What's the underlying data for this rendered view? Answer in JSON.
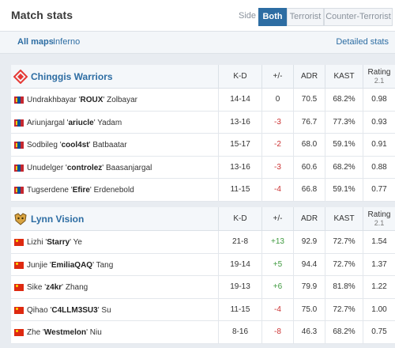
{
  "header": {
    "title": "Match stats",
    "side_label": "Side",
    "side_options": [
      "Both",
      "Terrorist",
      "Counter-Terrorist"
    ],
    "side_selected": "Both"
  },
  "maps": {
    "all_label": "All maps",
    "map_label": "Inferno",
    "detailed_label": "Detailed stats"
  },
  "columns": {
    "kd": "K-D",
    "pm": "+/-",
    "adr": "ADR",
    "kast": "KAST",
    "rating": "Rating",
    "rating_sub": "2.1"
  },
  "teams": [
    {
      "name": "Chinggis Warriors",
      "logo_icon": "chinggis-warriors-logo",
      "players": [
        {
          "first": "Undrakhbayar",
          "nick": "ROUX",
          "last": "Zolbayar",
          "flag": "mn",
          "kd": "14-14",
          "pm": "0",
          "adr": "70.5",
          "kast": "68.2%",
          "rating": "0.98"
        },
        {
          "first": "Ariunjargal",
          "nick": "ariucle",
          "last": "Yadam",
          "flag": "mn",
          "kd": "13-16",
          "pm": "-3",
          "adr": "76.7",
          "kast": "77.3%",
          "rating": "0.93"
        },
        {
          "first": "Sodbileg",
          "nick": "cool4st",
          "last": "Batbaatar",
          "flag": "mn",
          "kd": "15-17",
          "pm": "-2",
          "adr": "68.0",
          "kast": "59.1%",
          "rating": "0.91"
        },
        {
          "first": "Unudelger",
          "nick": "controlez",
          "last": "Baasanjargal",
          "flag": "mn",
          "kd": "13-16",
          "pm": "-3",
          "adr": "60.6",
          "kast": "68.2%",
          "rating": "0.88"
        },
        {
          "first": "Tugserdene",
          "nick": "Efire",
          "last": "Erdenebold",
          "flag": "mn",
          "kd": "11-15",
          "pm": "-4",
          "adr": "66.8",
          "kast": "59.1%",
          "rating": "0.77"
        }
      ]
    },
    {
      "name": "Lynn Vision",
      "logo_icon": "lynn-vision-logo",
      "players": [
        {
          "first": "Lizhi",
          "nick": "Starry",
          "last": "Ye",
          "flag": "cn",
          "kd": "21-8",
          "pm": "+13",
          "adr": "92.9",
          "kast": "72.7%",
          "rating": "1.54"
        },
        {
          "first": "Junjie",
          "nick": "EmiliaQAQ",
          "last": "Tang",
          "flag": "cn",
          "kd": "19-14",
          "pm": "+5",
          "adr": "94.4",
          "kast": "72.7%",
          "rating": "1.37"
        },
        {
          "first": "Sike",
          "nick": "z4kr",
          "last": "Zhang",
          "flag": "cn",
          "kd": "19-13",
          "pm": "+6",
          "adr": "79.9",
          "kast": "81.8%",
          "rating": "1.22"
        },
        {
          "first": "Qihao",
          "nick": "C4LLM3SU3",
          "last": "Su",
          "flag": "cn",
          "kd": "11-15",
          "pm": "-4",
          "adr": "75.0",
          "kast": "72.7%",
          "rating": "1.00"
        },
        {
          "first": "Zhe",
          "nick": "Westmelon",
          "last": "Niu",
          "flag": "cn",
          "kd": "8-16",
          "pm": "-8",
          "adr": "46.3",
          "kast": "68.2%",
          "rating": "0.75"
        }
      ]
    }
  ]
}
